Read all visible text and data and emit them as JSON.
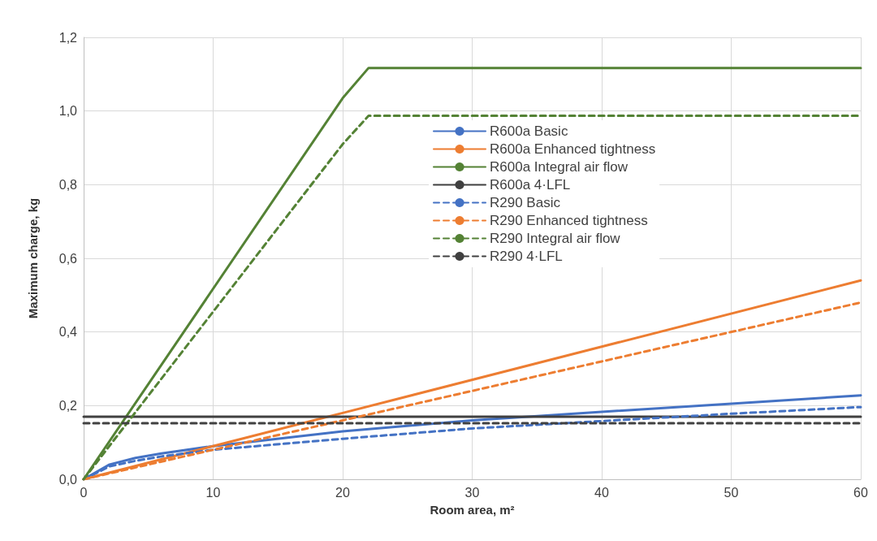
{
  "chart_data": {
    "type": "line",
    "xlabel": "Room area, m²",
    "ylabel": "Maximum charge, kg",
    "xlim": [
      0,
      60
    ],
    "xticks": [
      0,
      10,
      20,
      30,
      40,
      50,
      60
    ],
    "ylim": [
      0,
      1.2
    ],
    "yticks": [
      {
        "value": 0,
        "label": "0,0"
      },
      {
        "value": 0.2,
        "label": "0,2"
      },
      {
        "value": 0.4,
        "label": "0,4"
      },
      {
        "value": 0.6,
        "label": "0,6"
      },
      {
        "value": 0.8,
        "label": "0,8"
      },
      {
        "value": 1.0,
        "label": "1,0"
      },
      {
        "value": 1.2,
        "label": "1,2"
      }
    ],
    "grid": true,
    "legend": "right",
    "marker": "none",
    "series": [
      {
        "name": "R600a Basic",
        "color": "#4472c4",
        "line_style": "solid",
        "x": [
          0,
          2,
          4,
          6,
          10,
          20,
          30,
          40,
          50,
          60
        ],
        "values": [
          0,
          0.04,
          0.058,
          0.07,
          0.09,
          0.13,
          0.16,
          0.183,
          0.205,
          0.228
        ]
      },
      {
        "name": "R600a Enhanced tightness",
        "color": "#ed7d31",
        "line_style": "solid",
        "x": [
          0,
          20,
          40,
          60
        ],
        "values": [
          0,
          0.18,
          0.36,
          0.54
        ]
      },
      {
        "name": "R600a Integral air flow",
        "color": "#548235",
        "line_style": "solid",
        "x": [
          0,
          20,
          22,
          60
        ],
        "values": [
          0,
          1.035,
          1.117,
          1.117
        ]
      },
      {
        "name": "R600a 4·LFL",
        "color": "#404040",
        "line_style": "solid",
        "x": [
          0,
          60
        ],
        "values": [
          0.17,
          0.17
        ]
      },
      {
        "name": "R290 Basic",
        "color": "#4472c4",
        "line_style": "dashed",
        "x": [
          0,
          2,
          4,
          6,
          10,
          20,
          30,
          40,
          50,
          60
        ],
        "values": [
          0,
          0.035,
          0.05,
          0.062,
          0.08,
          0.11,
          0.138,
          0.158,
          0.178,
          0.196
        ]
      },
      {
        "name": "R290 Enhanced tightness",
        "color": "#ed7d31",
        "line_style": "dashed",
        "x": [
          0,
          20,
          40,
          60
        ],
        "values": [
          0,
          0.16,
          0.32,
          0.48
        ]
      },
      {
        "name": "R290 Integral air flow",
        "color": "#548235",
        "line_style": "dashed",
        "x": [
          0,
          20,
          22,
          60
        ],
        "values": [
          0,
          0.91,
          0.987,
          0.987
        ]
      },
      {
        "name": "R290 4·LFL",
        "color": "#404040",
        "line_style": "dashed",
        "x": [
          0,
          60
        ],
        "values": [
          0.152,
          0.152
        ]
      }
    ]
  }
}
